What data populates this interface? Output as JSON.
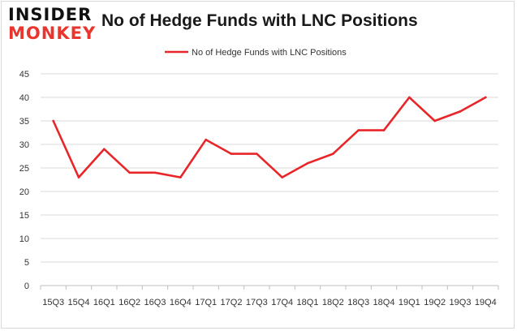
{
  "logo": {
    "line1": "INSIDER",
    "line2": "MONKEY"
  },
  "colors": {
    "series": "#e8262a",
    "grid": "#d9d9d9",
    "axis": "#bfbfbf"
  },
  "chart_data": {
    "type": "line",
    "title": "No of Hedge Funds with LNC Positions",
    "legend": "top-center",
    "grid": true,
    "ylim": [
      0,
      45
    ],
    "yticks": [
      0,
      5,
      10,
      15,
      20,
      25,
      30,
      35,
      40,
      45
    ],
    "categories": [
      "15Q3",
      "15Q4",
      "16Q1",
      "16Q2",
      "16Q3",
      "16Q4",
      "17Q1",
      "17Q2",
      "17Q3",
      "17Q4",
      "18Q1",
      "18Q2",
      "18Q3",
      "18Q4",
      "19Q1",
      "19Q2",
      "19Q3",
      "19Q4"
    ],
    "series": [
      {
        "name": "No of Hedge Funds with LNC Positions",
        "values": [
          35,
          23,
          29,
          24,
          24,
          23,
          31,
          28,
          28,
          23,
          26,
          28,
          33,
          33,
          40,
          35,
          37,
          40
        ]
      }
    ]
  }
}
